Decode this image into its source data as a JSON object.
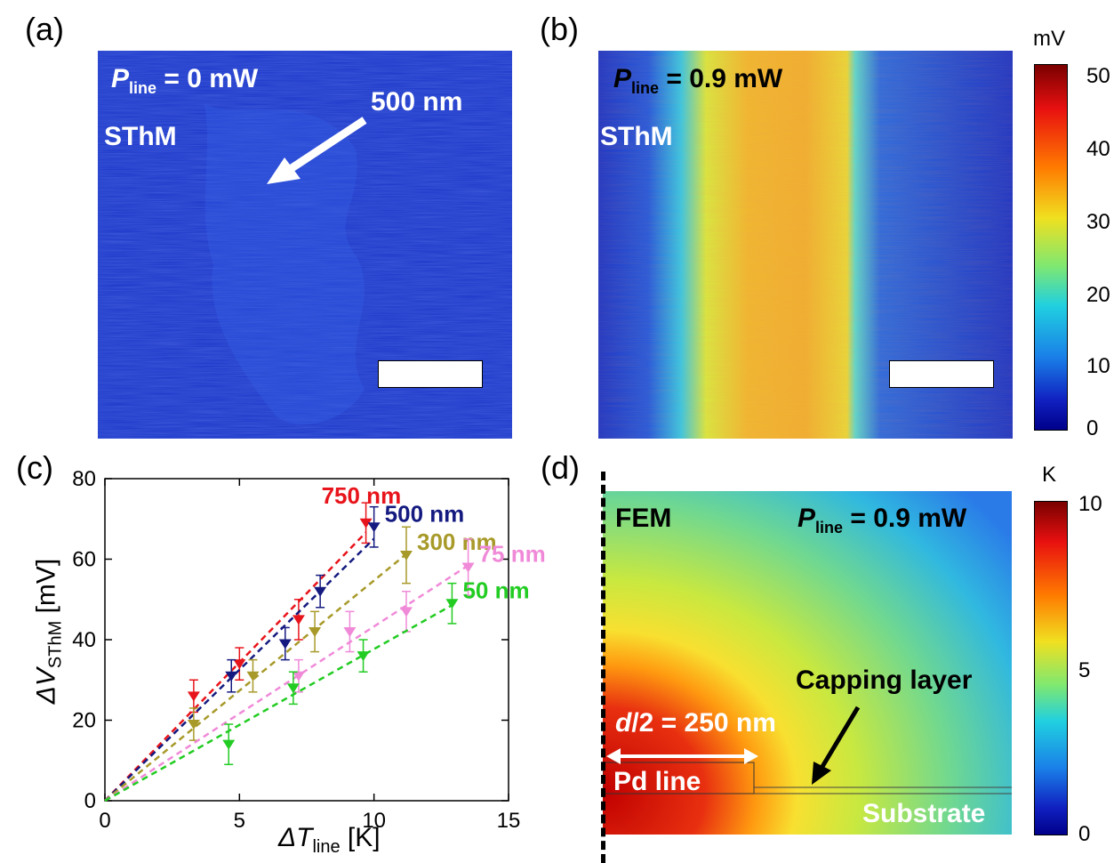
{
  "panels": {
    "a": {
      "label": "(a)",
      "power_var": "P",
      "power_sub": "line",
      "power_value": " = 0 mW",
      "method": "SThM",
      "annotation": "500 nm"
    },
    "b": {
      "label": "(b)",
      "power_var": "P",
      "power_sub": "line",
      "power_value": " = 0.9 mW",
      "method": "SThM"
    },
    "colorbar_top": {
      "unit": "mV",
      "ticks": [
        "50",
        "40",
        "30",
        "20",
        "10",
        "0"
      ]
    },
    "c": {
      "label": "(c)"
    },
    "d": {
      "label": "(d)",
      "method": "FEM",
      "power_var": "P",
      "power_sub": "line",
      "power_value": " = 0.9 mW",
      "capping": "Capping layer",
      "dim_var": "d",
      "dim_value": "/2 = 250 nm",
      "pd_line": "Pd line",
      "substrate": "Substrate"
    },
    "colorbar_bottom": {
      "unit": "K",
      "ticks": [
        "10",
        "5",
        "0"
      ]
    }
  },
  "colors": {
    "map_blue": "#1a3fd0",
    "series_750": "#e8141b",
    "series_500": "#141a80",
    "series_300": "#a89a2a",
    "series_75": "#f08ad8",
    "series_50": "#22cc22"
  },
  "chart_data": {
    "type": "scatter",
    "xlabel_var": "ΔT",
    "xlabel_sub": "line",
    "xlabel_unit": " [K]",
    "ylabel_var": "ΔV",
    "ylabel_sub": "SThM",
    "ylabel_unit": " [mV]",
    "xlim": [
      0,
      15
    ],
    "ylim": [
      0,
      80
    ],
    "xticks": [
      0,
      5,
      10,
      15
    ],
    "yticks": [
      0,
      20,
      40,
      60,
      80
    ],
    "fit_lines": "dashed, through origin",
    "series": [
      {
        "name": "750 nm",
        "color": "#e8141b",
        "x": [
          3.3,
          5.0,
          7.2,
          9.7
        ],
        "y": [
          26,
          34,
          45,
          69
        ],
        "err": [
          4,
          4,
          5,
          5
        ]
      },
      {
        "name": "500 nm",
        "color": "#141a80",
        "x": [
          4.7,
          6.7,
          8.0,
          10.0
        ],
        "y": [
          31,
          39,
          52,
          68
        ],
        "err": [
          4,
          4,
          4,
          5
        ]
      },
      {
        "name": "300 nm",
        "color": "#a89a2a",
        "x": [
          3.3,
          5.5,
          7.8,
          11.2
        ],
        "y": [
          19,
          31,
          42,
          61
        ],
        "err": [
          4,
          4,
          5,
          7
        ]
      },
      {
        "name": "75 nm",
        "color": "#f08ad8",
        "x": [
          7.2,
          9.1,
          11.2,
          13.5
        ],
        "y": [
          31,
          42,
          47,
          58
        ],
        "err": [
          4,
          5,
          5,
          7
        ]
      },
      {
        "name": "50 nm",
        "color": "#22cc22",
        "x": [
          4.6,
          7.0,
          9.6,
          12.9
        ],
        "y": [
          14,
          28,
          36,
          49
        ],
        "err": [
          5,
          4,
          4,
          5
        ]
      }
    ]
  }
}
